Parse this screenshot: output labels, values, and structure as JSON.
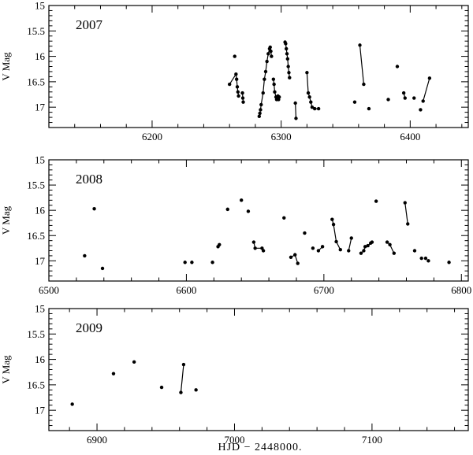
{
  "chart_data": {
    "type": "scatter",
    "xlabel": "HJD − 2448000.",
    "panels": [
      {
        "year": "2007",
        "ylabel": "V Mag",
        "xlim": [
          6120,
          6445
        ],
        "ylim": [
          15,
          17.4
        ],
        "xticks": [
          6200,
          6300,
          6400
        ],
        "yticks": [
          "15",
          "15.5",
          "16",
          "16.5",
          "17"
        ],
        "points": [
          [
            6260,
            16.55
          ],
          [
            6264,
            16.0
          ],
          [
            6265,
            16.35
          ],
          [
            6265.5,
            16.45
          ],
          [
            6266,
            16.6
          ],
          [
            6266.5,
            16.7
          ],
          [
            6267,
            16.78
          ],
          [
            6270,
            16.72
          ],
          [
            6270.3,
            16.82
          ],
          [
            6270.6,
            16.9
          ],
          [
            6283,
            17.18
          ],
          [
            6283.5,
            17.12
          ],
          [
            6284,
            17.05
          ],
          [
            6284.5,
            16.95
          ],
          [
            6286,
            16.72
          ],
          [
            6287,
            16.45
          ],
          [
            6288,
            16.3
          ],
          [
            6289,
            16.1
          ],
          [
            6290,
            15.95
          ],
          [
            6291,
            15.85
          ],
          [
            6291.5,
            15.82
          ],
          [
            6292,
            15.9
          ],
          [
            6292.5,
            16.0
          ],
          [
            6294,
            16.45
          ],
          [
            6294.5,
            16.55
          ],
          [
            6295,
            16.7
          ],
          [
            6296,
            16.8
          ],
          [
            6296.5,
            16.85
          ],
          [
            6297,
            16.82
          ],
          [
            6297.5,
            16.78
          ],
          [
            6298,
            16.85
          ],
          [
            6298.5,
            16.8
          ],
          [
            6303,
            15.72
          ],
          [
            6303.5,
            15.75
          ],
          [
            6304,
            15.85
          ],
          [
            6304.5,
            15.95
          ],
          [
            6305,
            16.05
          ],
          [
            6305.5,
            16.2
          ],
          [
            6306,
            16.32
          ],
          [
            6306.5,
            16.42
          ],
          [
            6311,
            16.92
          ],
          [
            6311.5,
            17.22
          ],
          [
            6320,
            16.32
          ],
          [
            6321,
            16.72
          ],
          [
            6322,
            16.8
          ],
          [
            6323,
            16.9
          ],
          [
            6324,
            17.0
          ],
          [
            6326,
            17.03
          ],
          [
            6329,
            17.03
          ],
          [
            6357,
            16.9
          ],
          [
            6361,
            15.78
          ],
          [
            6364,
            16.55
          ],
          [
            6368,
            17.03
          ],
          [
            6383,
            16.85
          ],
          [
            6390,
            16.2
          ],
          [
            6395,
            16.72
          ],
          [
            6396,
            16.82
          ],
          [
            6403,
            16.82
          ],
          [
            6408,
            17.05
          ],
          [
            6410,
            16.88
          ],
          [
            6415,
            16.43
          ]
        ],
        "segments": [
          [
            0,
            2,
            3,
            4,
            5,
            6
          ],
          [
            7,
            8,
            9
          ],
          [
            10,
            11,
            12,
            13,
            14,
            15,
            16,
            17,
            18,
            19,
            20,
            21,
            22
          ],
          [
            23,
            24,
            25,
            26,
            27,
            28,
            29,
            30,
            31
          ],
          [
            32,
            33,
            34,
            35,
            36,
            37,
            38,
            39
          ],
          [
            40,
            41
          ],
          [
            42,
            43,
            44,
            45,
            46,
            47,
            48
          ],
          [
            50,
            51
          ],
          [
            55,
            56
          ],
          [
            59,
            60
          ]
        ]
      },
      {
        "year": "2008",
        "ylabel": "V Mag",
        "xlim": [
          6500,
          6805
        ],
        "ylim": [
          15,
          17.4
        ],
        "xticks": [
          6500,
          6600,
          6700,
          6800
        ],
        "yticks": [
          "15",
          "15.5",
          "16",
          "16.5",
          "17"
        ],
        "points": [
          [
            6526,
            16.9
          ],
          [
            6533,
            15.97
          ],
          [
            6539,
            17.15
          ],
          [
            6599,
            17.03
          ],
          [
            6604,
            17.03
          ],
          [
            6619,
            17.03
          ],
          [
            6623,
            16.72
          ],
          [
            6624,
            16.68
          ],
          [
            6630,
            15.98
          ],
          [
            6640,
            15.8
          ],
          [
            6645,
            16.02
          ],
          [
            6649,
            16.63
          ],
          [
            6650,
            16.75
          ],
          [
            6655,
            16.75
          ],
          [
            6656,
            16.8
          ],
          [
            6671,
            16.15
          ],
          [
            6676,
            16.93
          ],
          [
            6679,
            16.88
          ],
          [
            6681,
            17.05
          ],
          [
            6686,
            16.45
          ],
          [
            6692,
            16.75
          ],
          [
            6696,
            16.8
          ],
          [
            6699,
            16.72
          ],
          [
            6706,
            16.18
          ],
          [
            6707,
            16.28
          ],
          [
            6709,
            16.62
          ],
          [
            6712,
            16.78
          ],
          [
            6718,
            16.8
          ],
          [
            6720,
            16.55
          ],
          [
            6727,
            16.85
          ],
          [
            6729,
            16.8
          ],
          [
            6730,
            16.72
          ],
          [
            6732,
            16.7
          ],
          [
            6734,
            16.65
          ],
          [
            6735,
            16.63
          ],
          [
            6738,
            15.82
          ],
          [
            6746,
            16.63
          ],
          [
            6748,
            16.68
          ],
          [
            6751,
            16.85
          ],
          [
            6759,
            15.85
          ],
          [
            6761,
            16.27
          ],
          [
            6766,
            16.8
          ],
          [
            6771,
            16.95
          ],
          [
            6774,
            16.95
          ],
          [
            6776,
            17.0
          ],
          [
            6791,
            17.03
          ]
        ],
        "segments": [
          [
            6,
            7
          ],
          [
            11,
            12,
            13,
            14
          ],
          [
            16,
            17,
            18
          ],
          [
            21,
            22
          ],
          [
            23,
            24,
            25,
            26
          ],
          [
            27,
            28
          ],
          [
            29,
            30,
            31,
            32,
            33,
            34
          ],
          [
            36,
            37,
            38
          ],
          [
            39,
            40
          ]
        ]
      },
      {
        "year": "2009",
        "ylabel": "V Mag",
        "xlim": [
          6865,
          7170
        ],
        "ylim": [
          15,
          17.4
        ],
        "xticks": [
          6900,
          7000,
          7100
        ],
        "yticks": [
          "15",
          "15.5",
          "16",
          "16.5",
          "17"
        ],
        "points": [
          [
            6882,
            16.88
          ],
          [
            6912,
            16.28
          ],
          [
            6927,
            16.05
          ],
          [
            6947,
            16.55
          ],
          [
            6961,
            16.65
          ],
          [
            6963,
            16.1
          ],
          [
            6972,
            16.6
          ]
        ],
        "segments": [
          [
            4,
            5
          ]
        ]
      }
    ]
  }
}
